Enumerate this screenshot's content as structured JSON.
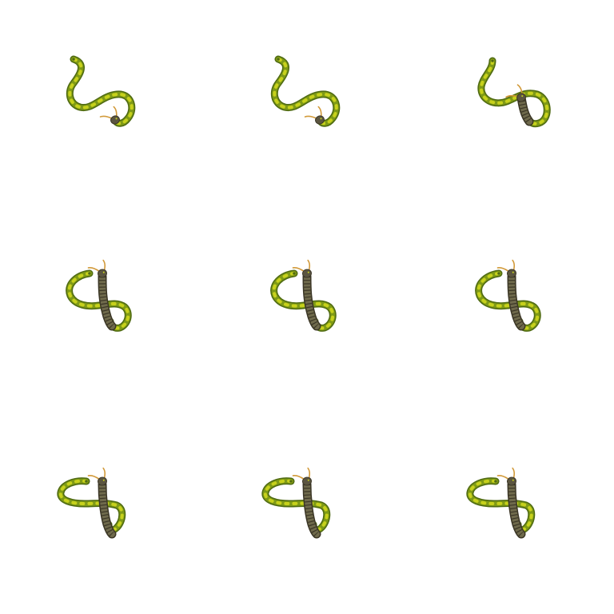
{
  "sprite_sheet": {
    "subject": "snake-with-horns",
    "grid": {
      "rows": 3,
      "cols": 3
    },
    "background": "#ffffff",
    "colors": {
      "body_dark": "#4f6a12",
      "body_mid": "#7f9a16",
      "body_spot": "#c7d11c",
      "belly": "#6f6a4c",
      "belly_stripe": "#3b3626",
      "head": "#5b5540",
      "horn": "#d29a3a"
    },
    "frames": [
      {
        "pose": "coil-low"
      },
      {
        "pose": "coil-low"
      },
      {
        "pose": "coil-mid"
      },
      {
        "pose": "raised"
      },
      {
        "pose": "raised"
      },
      {
        "pose": "raised"
      },
      {
        "pose": "raised-flat"
      },
      {
        "pose": "raised-flat"
      },
      {
        "pose": "raised-flat"
      }
    ]
  }
}
